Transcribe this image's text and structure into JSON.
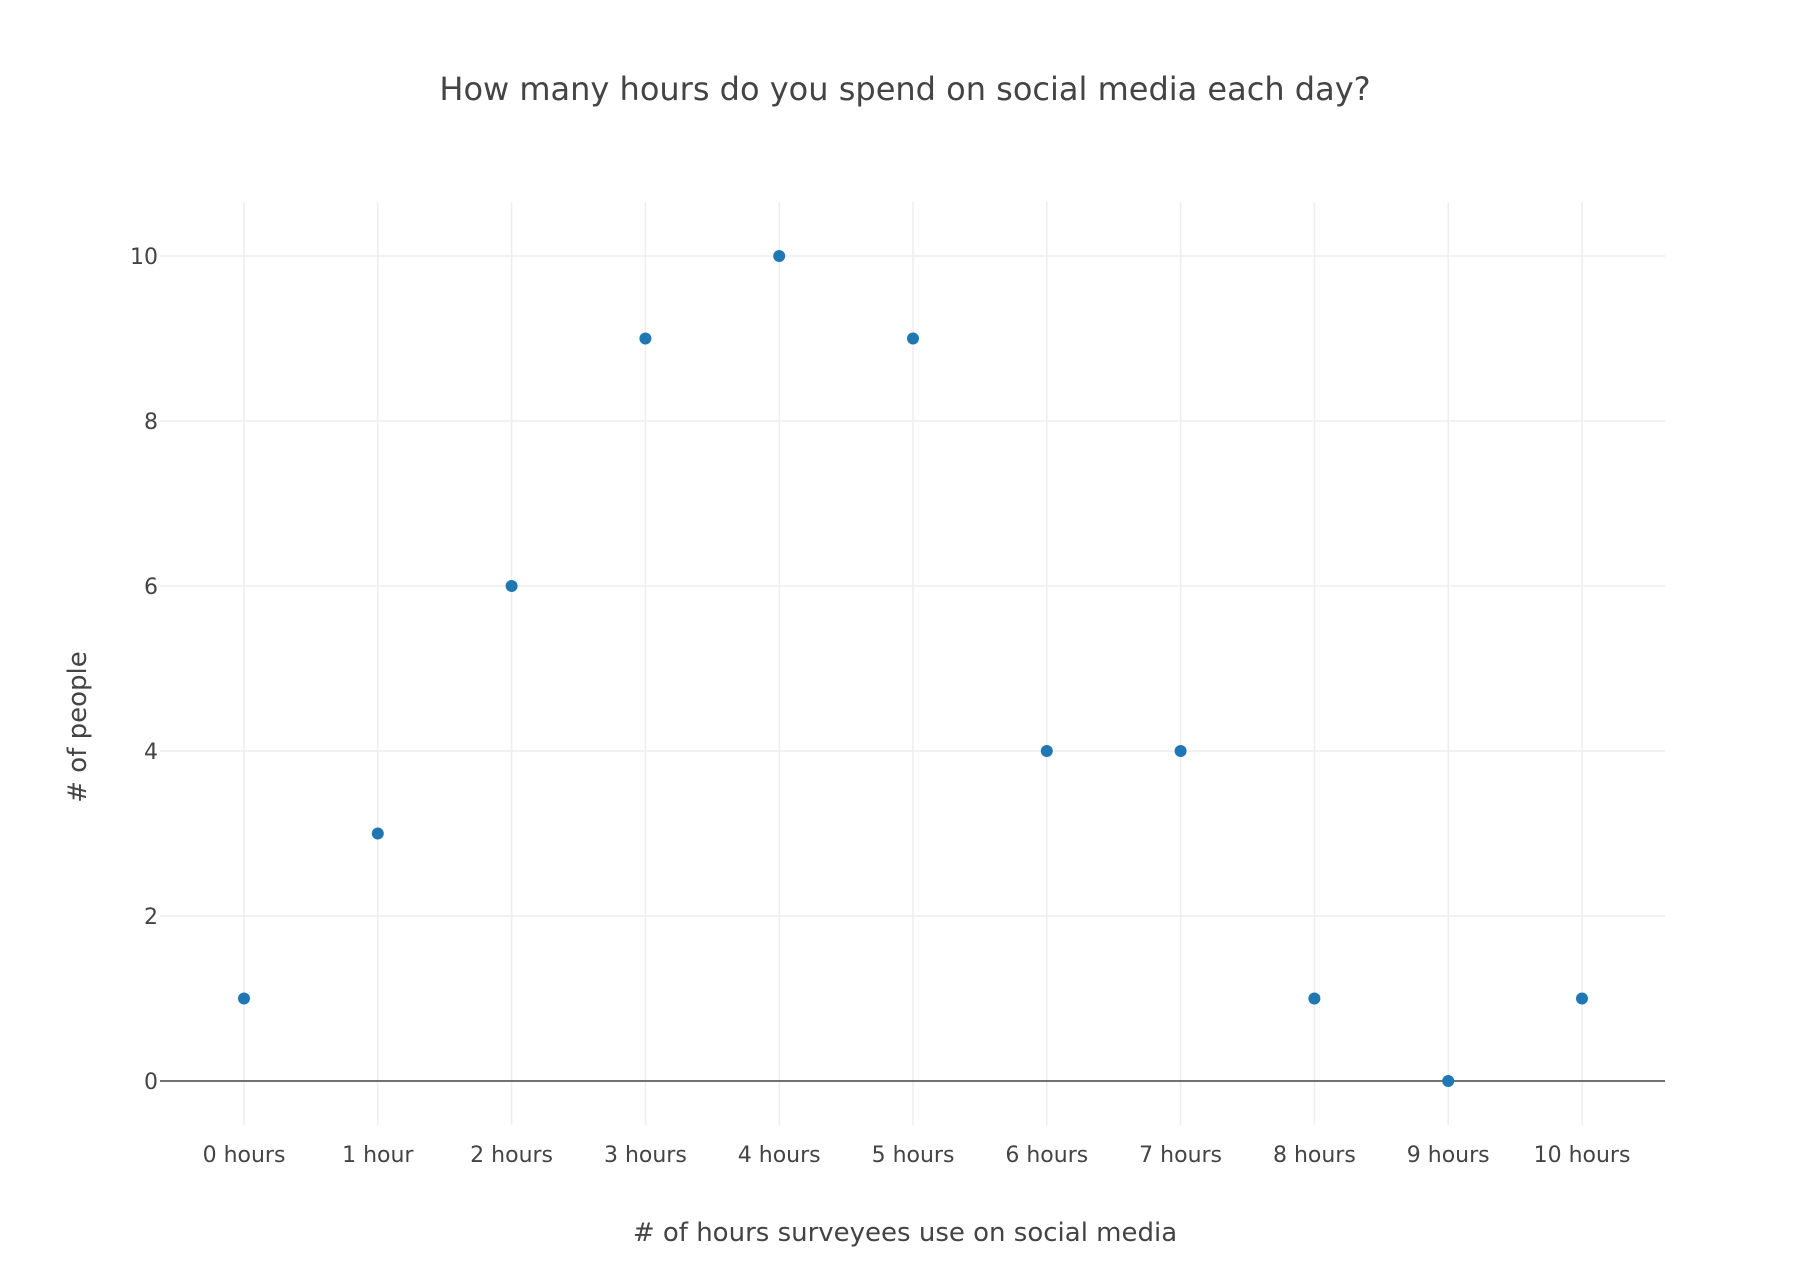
{
  "chart_data": {
    "type": "scatter",
    "title": "How many hours do you spend on social media each day?",
    "xlabel": "# of hours surveyees use on social media",
    "ylabel": "# of people",
    "categories": [
      "0 hours",
      "1 hour",
      "2 hours",
      "3 hours",
      "4 hours",
      "5 hours",
      "6 hours",
      "7 hours",
      "8 hours",
      "9 hours",
      "10 hours"
    ],
    "series": [
      {
        "values": [
          1,
          3,
          6,
          9,
          10,
          9,
          4,
          4,
          1,
          0,
          1
        ],
        "color": "#1f77b4"
      }
    ],
    "yticks": [
      0,
      2,
      4,
      6,
      8,
      10
    ],
    "ylim": [
      -0.7,
      10.7
    ],
    "grid": true,
    "zero_line": true,
    "colors": {
      "grid": "#eeeeee",
      "zero_line": "#444444",
      "text": "#444444",
      "marker": "#1f77b4"
    }
  }
}
